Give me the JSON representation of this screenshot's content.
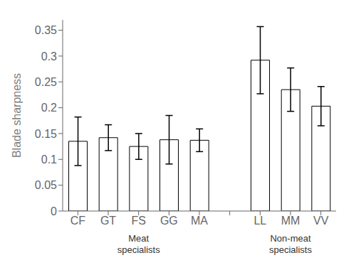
{
  "chart_data": {
    "type": "bar",
    "categories": [
      "CF",
      "GT",
      "FS",
      "GG",
      "MA",
      "LL",
      "MM",
      "VV"
    ],
    "values": [
      0.135,
      0.142,
      0.125,
      0.138,
      0.137,
      0.292,
      0.235,
      0.203
    ],
    "errors": [
      0.047,
      0.025,
      0.025,
      0.047,
      0.022,
      0.065,
      0.042,
      0.038
    ],
    "ylabel": "Blade sharpness",
    "ylim": [
      0,
      0.37
    ],
    "yticks": [
      0,
      0.05,
      0.1,
      0.15,
      0.2,
      0.25,
      0.3,
      0.35
    ],
    "color": "#ffffff",
    "groups": [
      {
        "label": "Meat\nspecialists",
        "categories": [
          "CF",
          "GT",
          "FS",
          "GG",
          "MA"
        ]
      },
      {
        "label": "Non-meat\nspecialists",
        "categories": [
          "LL",
          "MM",
          "VV"
        ]
      }
    ]
  }
}
